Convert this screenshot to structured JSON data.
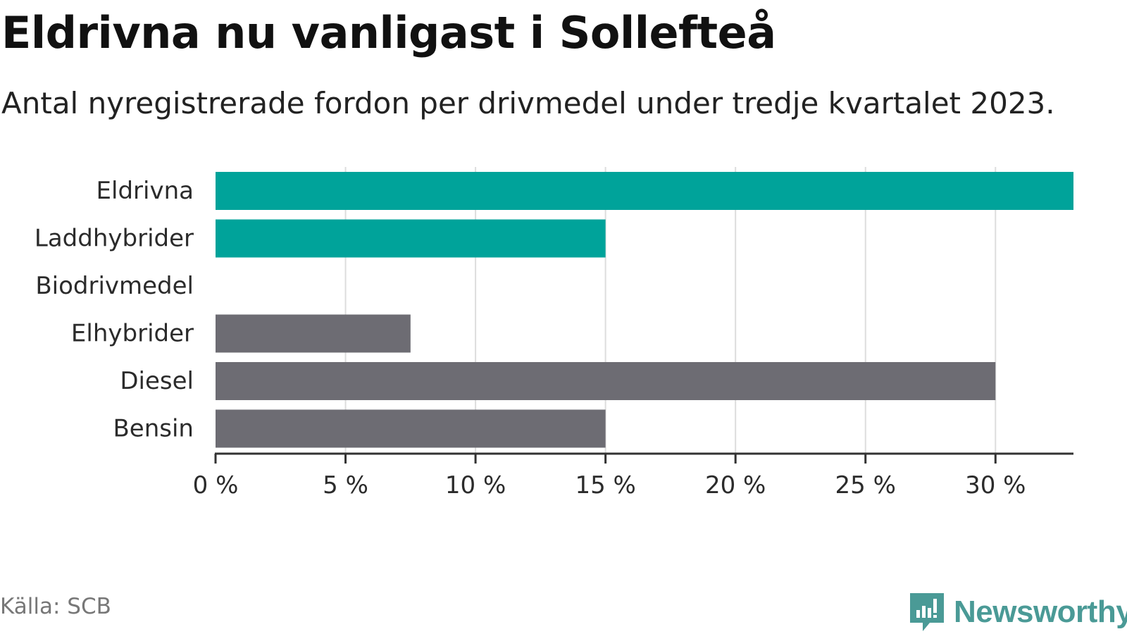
{
  "title": "Eldrivna nu vanligast i Sollefteå",
  "subtitle": "Antal nyregistrerade fordon per drivmedel under tredje kvartalet 2023.",
  "source": "Källa: SCB",
  "brand": "Newsworthy",
  "colors": {
    "highlight": "#00a39a",
    "neutral": "#6d6c73",
    "grid": "#dddddd",
    "axis": "#333333",
    "brand": "#4a9a96"
  },
  "chart_data": {
    "type": "bar",
    "orientation": "horizontal",
    "title": "Eldrivna nu vanligast i Sollefteå",
    "subtitle": "Antal nyregistrerade fordon per drivmedel under tredje kvartalet 2023.",
    "xlabel": "",
    "ylabel": "",
    "unit": "%",
    "xlim": [
      0,
      33
    ],
    "ticks": [
      0,
      5,
      10,
      15,
      20,
      25,
      30
    ],
    "tick_labels": [
      "0 %",
      "5 %",
      "10 %",
      "15 %",
      "20 %",
      "25 %",
      "30 %"
    ],
    "categories": [
      "Eldrivna",
      "Laddhybrider",
      "Biodrivmedel",
      "Elhybrider",
      "Diesel",
      "Bensin"
    ],
    "values": [
      33.0,
      15.0,
      0,
      7.5,
      30.0,
      15.0
    ],
    "highlighted": [
      true,
      true,
      false,
      false,
      false,
      false
    ],
    "grid": true
  }
}
